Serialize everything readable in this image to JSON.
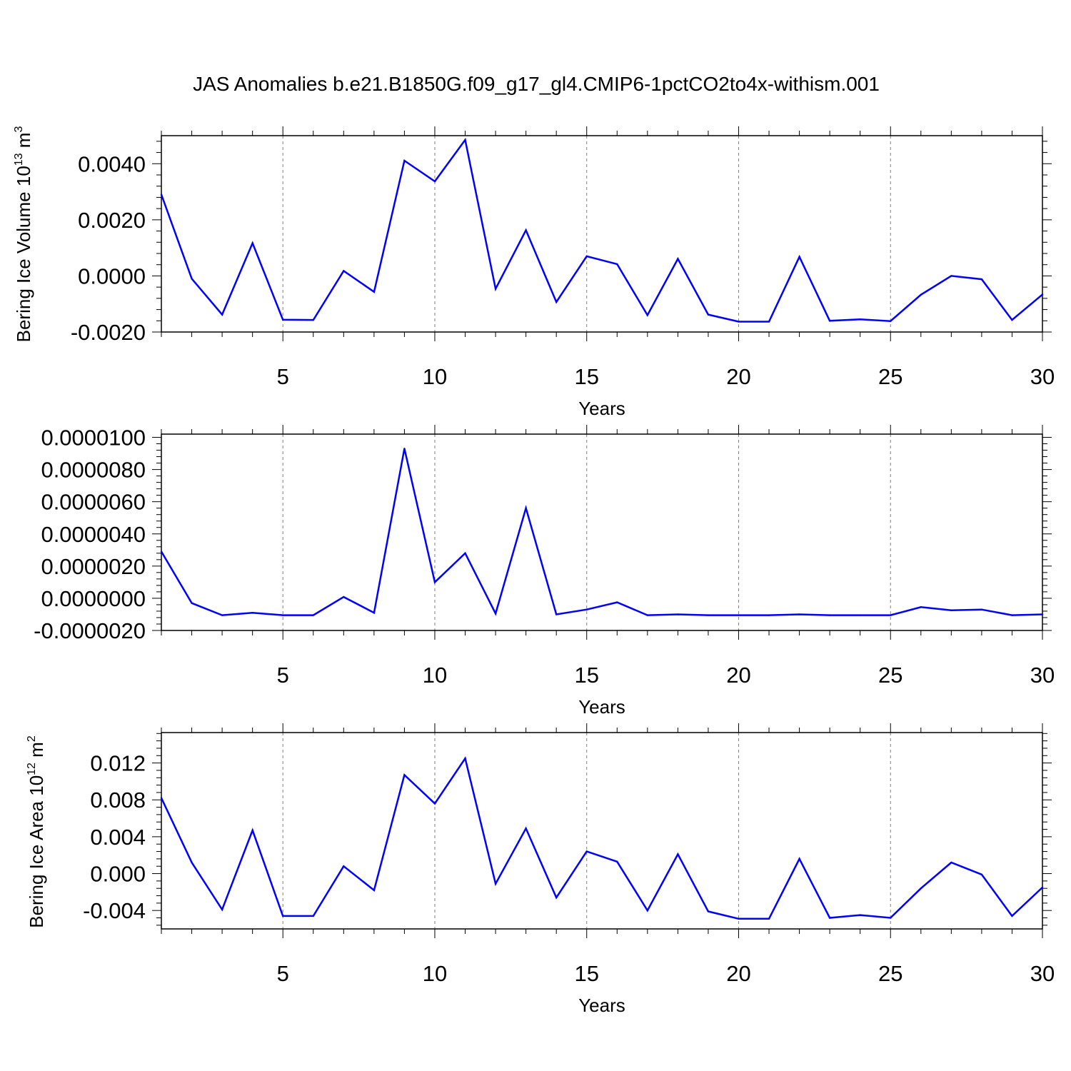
{
  "title": "JAS Anomalies b.e21.B1850G.f09_g17_gl4.CMIP6-1pctCO2to4x-withism.001",
  "colors": {
    "line": "#0000ff",
    "axis": "#000000",
    "grid": "#7f7f7f"
  },
  "chart_data": [
    {
      "type": "line",
      "ylabel": {
        "main": "Bering Ice Volume 10",
        "sup": "13",
        "unit": " m",
        "unit_sup": "3"
      },
      "xlabel": "Years",
      "xlim": [
        1,
        30
      ],
      "ylim": [
        -0.002,
        0.005
      ],
      "xticks": [
        5,
        10,
        15,
        20,
        25,
        30
      ],
      "yticks": [
        -0.002,
        0.0,
        0.002,
        0.004
      ],
      "ytick_labels": [
        "-0.0020",
        "0.0000",
        "0.0020",
        "0.0040"
      ],
      "grid": "vertical dashed at major x ticks",
      "x": [
        1,
        2,
        3,
        4,
        5,
        6,
        7,
        8,
        9,
        10,
        11,
        12,
        13,
        14,
        15,
        16,
        17,
        18,
        19,
        20,
        21,
        22,
        23,
        24,
        25,
        26,
        27,
        28,
        29,
        30
      ],
      "y": [
        0.0029,
        -0.0001,
        -0.00138,
        0.00117,
        -0.00156,
        -0.00157,
        0.00018,
        -0.00057,
        0.00411,
        0.00337,
        0.00485,
        -0.00046,
        0.00163,
        -0.00093,
        0.0007,
        0.00042,
        -0.0014,
        0.00061,
        -0.00138,
        -0.00163,
        -0.00163,
        0.00068,
        -0.0016,
        -0.00155,
        -0.00161,
        -0.00067,
        0.0,
        -0.00012,
        -0.00157,
        -0.00066
      ]
    },
    {
      "type": "line",
      "ylabel": null,
      "xlabel": "Years",
      "xlim": [
        1,
        30
      ],
      "ylim": [
        -2e-06,
        1.02e-05
      ],
      "xticks": [
        5,
        10,
        15,
        20,
        25,
        30
      ],
      "yticks": [
        -2e-06,
        0.0,
        2e-06,
        4e-06,
        6e-06,
        8e-06,
        1e-05
      ],
      "ytick_labels": [
        "-0.0000020",
        "0.0000000",
        "0.0000020",
        "0.0000040",
        "0.0000060",
        "0.0000080",
        "0.0000100"
      ],
      "grid": "vertical dashed at major x ticks",
      "x": [
        1,
        2,
        3,
        4,
        5,
        6,
        7,
        8,
        9,
        10,
        11,
        12,
        13,
        14,
        15,
        16,
        17,
        18,
        19,
        20,
        21,
        22,
        23,
        24,
        25,
        26,
        27,
        28,
        29,
        30
      ],
      "y": [
        2.9e-06,
        -3e-07,
        -1.05e-06,
        -9e-07,
        -1.05e-06,
        -1.05e-06,
        8e-08,
        -9e-07,
        9.3e-06,
        1e-06,
        2.8e-06,
        -9.5e-07,
        5.6e-06,
        -1e-06,
        -7e-07,
        -2.5e-07,
        -1.05e-06,
        -1e-06,
        -1.05e-06,
        -1.05e-06,
        -1.05e-06,
        -1e-06,
        -1.05e-06,
        -1.05e-06,
        -1.05e-06,
        -5.5e-07,
        -7.5e-07,
        -7e-07,
        -1.05e-06,
        -1e-06
      ]
    },
    {
      "type": "line",
      "ylabel": {
        "main": "Bering Ice Area 10",
        "sup": "12",
        "unit": " m",
        "unit_sup": "2"
      },
      "xlabel": "Years",
      "xlim": [
        1,
        30
      ],
      "ylim": [
        -0.006,
        0.0153
      ],
      "xticks": [
        5,
        10,
        15,
        20,
        25,
        30
      ],
      "yticks": [
        -0.004,
        0.0,
        0.004,
        0.008,
        0.012
      ],
      "ytick_labels": [
        "-0.004",
        "0.000",
        "0.004",
        "0.008",
        "0.012"
      ],
      "grid": "vertical dashed at major x ticks",
      "x": [
        1,
        2,
        3,
        4,
        5,
        6,
        7,
        8,
        9,
        10,
        11,
        12,
        13,
        14,
        15,
        16,
        17,
        18,
        19,
        20,
        21,
        22,
        23,
        24,
        25,
        26,
        27,
        28,
        29,
        30
      ],
      "y": [
        0.0082,
        0.0012,
        -0.0039,
        0.0047,
        -0.0046,
        -0.0046,
        0.0008,
        -0.0018,
        0.0107,
        0.0076,
        0.0125,
        -0.0011,
        0.0049,
        -0.0026,
        0.0024,
        0.0013,
        -0.004,
        0.0021,
        -0.0041,
        -0.0049,
        -0.0049,
        0.0016,
        -0.0048,
        -0.0045,
        -0.0048,
        -0.0016,
        0.0012,
        -0.0001,
        -0.0046,
        -0.0015
      ]
    }
  ]
}
